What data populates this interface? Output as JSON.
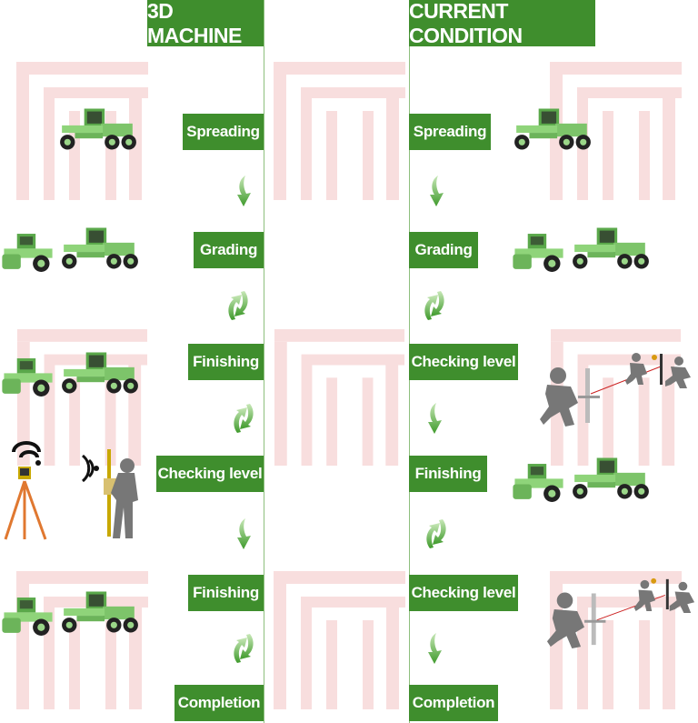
{
  "left": {
    "header": "3D MACHINE",
    "steps": [
      "Spreading",
      "Grading",
      "Finishing",
      "Checking level",
      "Finishing",
      "Completion"
    ]
  },
  "right": {
    "header": "CURRENT CONDITION",
    "steps": [
      "Spreading",
      "Grading",
      "Checking level",
      "Finishing",
      "Checking level",
      "Completion"
    ]
  },
  "colors": {
    "accent": "#3f8e2d",
    "watermark": "#f6d6d6",
    "machine": "#7dc46a"
  }
}
